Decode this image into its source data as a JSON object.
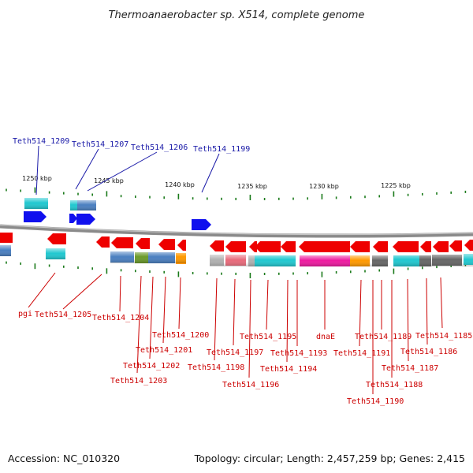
{
  "title": "Thermoanaerobacter sp. X514, complete genome",
  "footer": {
    "accession": "Accession: NC_010320",
    "topology": "Topology: circular; Length: 2,457,259 bp; Genes: 2,415"
  },
  "colors": {
    "backbone": "#888888",
    "top_label": "#1a1aa8",
    "bottom_label": "#cc0000",
    "forward_gene": "#1010ee",
    "reverse_gene": "#ee0000",
    "tick": "#1a7a1a"
  },
  "scale_labels": [
    "1250 kbp",
    "1245 kbp",
    "1240 kbp",
    "1235 kbp",
    "1230 kbp",
    "1225 kbp"
  ],
  "top_labels": [
    "Teth514_1209",
    "Teth514_1207",
    "Teth514_1206",
    "Teth514_1199"
  ],
  "bottom_labels": [
    "pgi",
    "Teth514_1205",
    "Teth514_1204",
    "Teth514_1203",
    "Teth514_1202",
    "Teth514_1201",
    "Teth514_1200",
    "Teth514_1198",
    "Teth514_1197",
    "Teth514_1196",
    "Teth514_1195",
    "Teth514_1194",
    "Teth514_1193",
    "dnaE",
    "Teth514_1191",
    "Teth514_1190",
    "Teth514_1189",
    "Teth514_1188",
    "Teth514_1187",
    "Teth514_1186",
    "Teth514_1185"
  ]
}
